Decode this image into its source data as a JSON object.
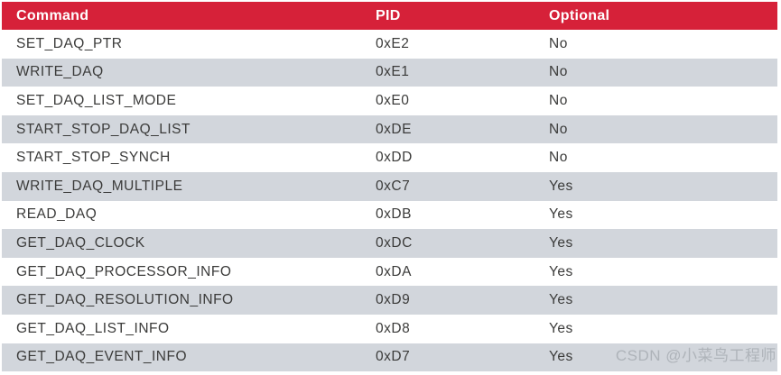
{
  "table": {
    "columns": [
      {
        "label": "Command"
      },
      {
        "label": "PID"
      },
      {
        "label": "Optional"
      }
    ],
    "rows": [
      {
        "command": "SET_DAQ_PTR",
        "pid": "0xE2",
        "optional": "No"
      },
      {
        "command": "WRITE_DAQ",
        "pid": "0xE1",
        "optional": "No"
      },
      {
        "command": "SET_DAQ_LIST_MODE",
        "pid": "0xE0",
        "optional": "No"
      },
      {
        "command": "START_STOP_DAQ_LIST",
        "pid": "0xDE",
        "optional": "No"
      },
      {
        "command": "START_STOP_SYNCH",
        "pid": "0xDD",
        "optional": "No"
      },
      {
        "command": "WRITE_DAQ_MULTIPLE",
        "pid": "0xC7",
        "optional": "Yes"
      },
      {
        "command": "READ_DAQ",
        "pid": "0xDB",
        "optional": "Yes"
      },
      {
        "command": "GET_DAQ_CLOCK",
        "pid": "0xDC",
        "optional": "Yes"
      },
      {
        "command": "GET_DAQ_PROCESSOR_INFO",
        "pid": "0xDA",
        "optional": "Yes"
      },
      {
        "command": "GET_DAQ_RESOLUTION_INFO",
        "pid": "0xD9",
        "optional": "Yes"
      },
      {
        "command": "GET_DAQ_LIST_INFO",
        "pid": "0xD8",
        "optional": "Yes"
      },
      {
        "command": "GET_DAQ_EVENT_INFO",
        "pid": "0xD7",
        "optional": "Yes"
      }
    ]
  },
  "watermark": {
    "text": "CSDN @小菜鸟工程师"
  },
  "colors": {
    "header_bg": "#d62139",
    "header_text": "#ffffff",
    "row_alt_bg": "#d2d6dc",
    "body_text": "#3b3b3a",
    "watermark_text": "#aeb3b9"
  }
}
